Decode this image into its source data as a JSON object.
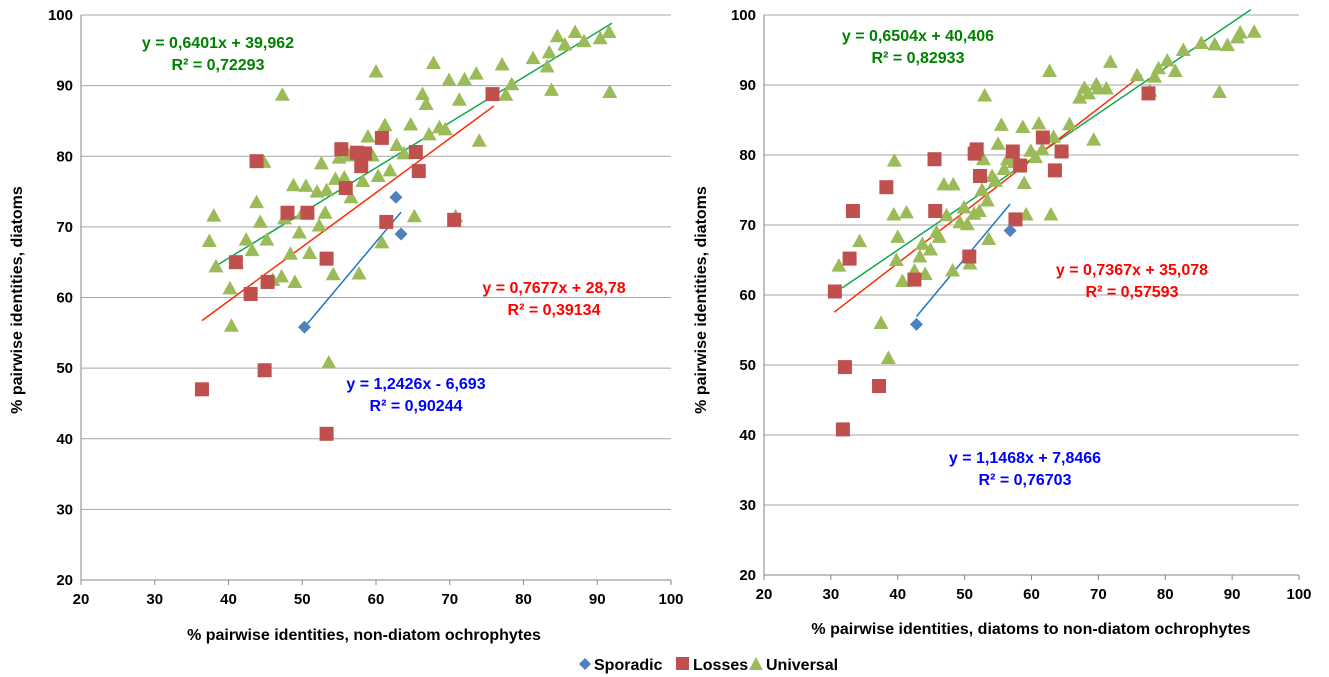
{
  "colors": {
    "sporadic": "#4f81bd",
    "losses": "#c0504d",
    "universal": "#9bbb59",
    "trend_sporadic": "#1f77c4",
    "trend_losses": "#ff2a00",
    "trend_universal": "#11a84e",
    "eq_universal": "#008000",
    "eq_losses": "#ff0000",
    "eq_sporadic": "#0000ff",
    "grid": "#a6a6a6"
  },
  "legend": {
    "items": [
      {
        "label": "Sporadic",
        "marker": "diamond",
        "series": "sporadic"
      },
      {
        "label": "Losses",
        "marker": "square",
        "series": "losses"
      },
      {
        "label": "Universal",
        "marker": "triangle",
        "series": "universal"
      }
    ],
    "position": "bottom-center"
  },
  "chart_data": [
    {
      "type": "scatter",
      "xlabel": "% pairwise identities, non-diatom ochrophytes",
      "ylabel": "% pairwise identities, diatoms",
      "xlim": [
        20,
        100
      ],
      "ylim": [
        20,
        100
      ],
      "xticks": [
        "20",
        "30",
        "40",
        "50",
        "60",
        "70",
        "80",
        "90",
        "100"
      ],
      "yticks": [
        "20",
        "30",
        "40",
        "50",
        "60",
        "70",
        "80",
        "90",
        "100"
      ],
      "grid": "horizontal",
      "series": [
        {
          "name": "Sporadic",
          "key": "sporadic",
          "points": [
            [
              50.3,
              55.8
            ],
            [
              62.7,
              74.2
            ],
            [
              63.4,
              69.0
            ]
          ]
        },
        {
          "name": "Losses",
          "key": "losses",
          "points": [
            [
              36.4,
              47.0
            ],
            [
              41.0,
              65.0
            ],
            [
              43.0,
              60.5
            ],
            [
              43.8,
              79.3
            ],
            [
              44.9,
              49.7
            ],
            [
              45.3,
              62.2
            ],
            [
              48.0,
              72.0
            ],
            [
              50.7,
              72.0
            ],
            [
              53.3,
              65.5
            ],
            [
              53.3,
              40.7
            ],
            [
              55.3,
              81.0
            ],
            [
              55.9,
              75.5
            ],
            [
              57.4,
              80.5
            ],
            [
              58.0,
              78.6
            ],
            [
              58.5,
              80.4
            ],
            [
              60.8,
              82.6
            ],
            [
              61.4,
              70.7
            ],
            [
              65.4,
              80.6
            ],
            [
              65.8,
              77.9
            ],
            [
              70.6,
              71.0
            ],
            [
              75.8,
              88.8
            ]
          ]
        },
        {
          "name": "Universal",
          "key": "universal",
          "points": [
            [
              37.4,
              68.0
            ],
            [
              38.0,
              71.6
            ],
            [
              38.3,
              64.4
            ],
            [
              40.4,
              56.0
            ],
            [
              40.2,
              61.3
            ],
            [
              41.1,
              65.0
            ],
            [
              42.4,
              68.2
            ],
            [
              43.2,
              66.7
            ],
            [
              43.8,
              73.5
            ],
            [
              44.3,
              70.7
            ],
            [
              44.8,
              79.2
            ],
            [
              45.2,
              68.2
            ],
            [
              46.0,
              62.5
            ],
            [
              47.2,
              63.0
            ],
            [
              47.3,
              88.7
            ],
            [
              47.6,
              71.2
            ],
            [
              48.4,
              66.2
            ],
            [
              48.8,
              75.9
            ],
            [
              49.0,
              62.2
            ],
            [
              49.6,
              69.2
            ],
            [
              50.0,
              71.9
            ],
            [
              50.5,
              75.8
            ],
            [
              51.0,
              66.3
            ],
            [
              52.0,
              75.0
            ],
            [
              52.3,
              70.2
            ],
            [
              52.6,
              79.0
            ],
            [
              53.1,
              72.0
            ],
            [
              53.3,
              75.2
            ],
            [
              53.6,
              50.8
            ],
            [
              54.2,
              63.3
            ],
            [
              54.5,
              76.8
            ],
            [
              55.0,
              79.8
            ],
            [
              55.7,
              77.0
            ],
            [
              56.3,
              80.1
            ],
            [
              56.6,
              74.2
            ],
            [
              57.7,
              63.4
            ],
            [
              58.2,
              76.5
            ],
            [
              58.9,
              82.8
            ],
            [
              59.5,
              80.1
            ],
            [
              60.0,
              92.0
            ],
            [
              60.3,
              77.2
            ],
            [
              60.8,
              67.8
            ],
            [
              61.2,
              84.4
            ],
            [
              61.9,
              78.0
            ],
            [
              62.8,
              81.6
            ],
            [
              63.8,
              80.4
            ],
            [
              64.7,
              84.5
            ],
            [
              65.2,
              71.5
            ],
            [
              66.3,
              88.8
            ],
            [
              66.8,
              87.4
            ],
            [
              67.2,
              83.1
            ],
            [
              67.8,
              93.2
            ],
            [
              68.6,
              84.1
            ],
            [
              69.4,
              83.8
            ],
            [
              69.9,
              90.8
            ],
            [
              70.8,
              71.5
            ],
            [
              71.3,
              88.0
            ],
            [
              72.0,
              90.9
            ],
            [
              73.6,
              91.7
            ],
            [
              74.0,
              82.2
            ],
            [
              77.1,
              93.0
            ],
            [
              77.6,
              88.7
            ],
            [
              78.4,
              90.2
            ],
            [
              81.3,
              93.9
            ],
            [
              83.2,
              92.7
            ],
            [
              83.5,
              94.7
            ],
            [
              83.8,
              89.4
            ],
            [
              84.6,
              97.0
            ],
            [
              85.6,
              95.8
            ],
            [
              87.0,
              97.6
            ],
            [
              88.2,
              96.3
            ],
            [
              90.4,
              96.7
            ],
            [
              91.6,
              97.6
            ],
            [
              91.7,
              89.1
            ]
          ]
        }
      ],
      "trendlines": [
        {
          "key": "universal",
          "slope": 0.6401,
          "intercept": 39.962,
          "x_range": [
            38.0,
            92.0
          ],
          "equation": "y = 0,6401x + 39,962",
          "r2": "R² = 0,72293"
        },
        {
          "key": "losses",
          "slope": 0.7677,
          "intercept": 28.78,
          "x_range": [
            36.4,
            76.0
          ],
          "equation": "y = 0,7677x + 28,78",
          "r2": "R² = 0,39134"
        },
        {
          "key": "sporadic",
          "slope": 1.2426,
          "intercept": -6.693,
          "x_range": [
            50.3,
            63.4
          ],
          "equation": "y = 1,2426x - 6,693",
          "r2": "R² = 0,90244"
        }
      ]
    },
    {
      "type": "scatter",
      "xlabel": "% pairwise identities, diatoms to non-diatom ochrophytes",
      "ylabel": "% pairwise identities, diatoms",
      "xlim": [
        20,
        100
      ],
      "ylim": [
        20,
        100
      ],
      "xticks": [
        "20",
        "30",
        "40",
        "50",
        "60",
        "70",
        "80",
        "90",
        "100"
      ],
      "yticks": [
        "20",
        "30",
        "40",
        "50",
        "60",
        "70",
        "80",
        "90",
        "100"
      ],
      "grid": "horizontal",
      "series": [
        {
          "name": "Sporadic",
          "key": "sporadic",
          "points": [
            [
              42.8,
              55.8
            ],
            [
              56.8,
              69.2
            ]
          ]
        },
        {
          "name": "Losses",
          "key": "losses",
          "points": [
            [
              30.6,
              60.5
            ],
            [
              31.8,
              40.8
            ],
            [
              32.1,
              49.7
            ],
            [
              32.8,
              65.2
            ],
            [
              33.3,
              72.0
            ],
            [
              37.2,
              47.0
            ],
            [
              38.3,
              75.4
            ],
            [
              42.5,
              62.2
            ],
            [
              45.5,
              79.4
            ],
            [
              45.6,
              72.0
            ],
            [
              50.7,
              65.5
            ],
            [
              51.5,
              80.2
            ],
            [
              51.8,
              80.8
            ],
            [
              52.3,
              77.0
            ],
            [
              57.2,
              80.5
            ],
            [
              57.6,
              70.8
            ],
            [
              58.3,
              78.5
            ],
            [
              61.7,
              82.5
            ],
            [
              63.5,
              77.8
            ],
            [
              64.5,
              80.5
            ],
            [
              77.5,
              88.8
            ]
          ]
        },
        {
          "name": "Universal",
          "key": "universal",
          "points": [
            [
              31.2,
              64.2
            ],
            [
              34.3,
              67.7
            ],
            [
              37.5,
              56.0
            ],
            [
              38.6,
              51.0
            ],
            [
              39.4,
              71.5
            ],
            [
              39.5,
              79.2
            ],
            [
              39.8,
              65.0
            ],
            [
              40.0,
              68.3
            ],
            [
              40.7,
              62.0
            ],
            [
              41.3,
              71.8
            ],
            [
              42.5,
              63.5
            ],
            [
              43.3,
              65.5
            ],
            [
              43.7,
              67.3
            ],
            [
              44.1,
              63.0
            ],
            [
              44.9,
              66.5
            ],
            [
              45.8,
              69.0
            ],
            [
              46.2,
              68.3
            ],
            [
              46.9,
              75.8
            ],
            [
              47.3,
              71.4
            ],
            [
              48.2,
              63.5
            ],
            [
              48.3,
              75.8
            ],
            [
              49.3,
              70.4
            ],
            [
              49.9,
              72.5
            ],
            [
              50.4,
              70.1
            ],
            [
              50.8,
              64.5
            ],
            [
              51.4,
              71.6
            ],
            [
              52.2,
              72.0
            ],
            [
              52.6,
              75.0
            ],
            [
              52.8,
              79.4
            ],
            [
              53.0,
              88.5
            ],
            [
              53.4,
              73.5
            ],
            [
              53.6,
              68.0
            ],
            [
              54.1,
              77.0
            ],
            [
              54.6,
              76.3
            ],
            [
              55.0,
              81.6
            ],
            [
              55.5,
              84.3
            ],
            [
              55.9,
              78.0
            ],
            [
              56.4,
              79.4
            ],
            [
              57.1,
              80.0
            ],
            [
              57.4,
              79.0
            ],
            [
              58.7,
              84.0
            ],
            [
              58.9,
              76.0
            ],
            [
              59.2,
              71.5
            ],
            [
              59.9,
              80.6
            ],
            [
              60.6,
              79.7
            ],
            [
              61.1,
              84.5
            ],
            [
              61.6,
              80.8
            ],
            [
              62.7,
              92.0
            ],
            [
              62.9,
              71.5
            ],
            [
              63.3,
              82.6
            ],
            [
              64.5,
              80.6
            ],
            [
              65.7,
              84.4
            ],
            [
              67.2,
              88.2
            ],
            [
              67.9,
              89.6
            ],
            [
              68.5,
              88.8
            ],
            [
              69.3,
              82.2
            ],
            [
              69.7,
              90.1
            ],
            [
              70.0,
              89.5
            ],
            [
              71.2,
              89.5
            ],
            [
              71.8,
              93.3
            ],
            [
              75.8,
              91.4
            ],
            [
              77.7,
              89.2
            ],
            [
              78.4,
              91.2
            ],
            [
              79.0,
              92.4
            ],
            [
              80.3,
              93.5
            ],
            [
              81.5,
              92.0
            ],
            [
              82.7,
              95.0
            ],
            [
              85.4,
              96.0
            ],
            [
              87.4,
              95.8
            ],
            [
              88.1,
              89.0
            ],
            [
              89.3,
              95.7
            ],
            [
              90.8,
              96.8
            ],
            [
              91.2,
              97.5
            ],
            [
              93.3,
              97.6
            ]
          ]
        }
      ],
      "trendlines": [
        {
          "key": "universal",
          "slope": 0.6504,
          "intercept": 40.406,
          "x_range": [
            31.7,
            92.8
          ],
          "equation": "y = 0,6504x + 40,406",
          "r2": "R² = 0,82933"
        },
        {
          "key": "losses",
          "slope": 0.7367,
          "intercept": 35.078,
          "x_range": [
            30.5,
            76.5
          ],
          "equation": "y = 0,7367x + 35,078",
          "r2": "R² = 0,57593"
        },
        {
          "key": "sporadic",
          "slope": 1.1468,
          "intercept": 7.8466,
          "x_range": [
            42.8,
            56.8
          ],
          "equation": "y = 1,1468x + 7,8466",
          "r2": "R² = 0,76703"
        }
      ]
    }
  ]
}
